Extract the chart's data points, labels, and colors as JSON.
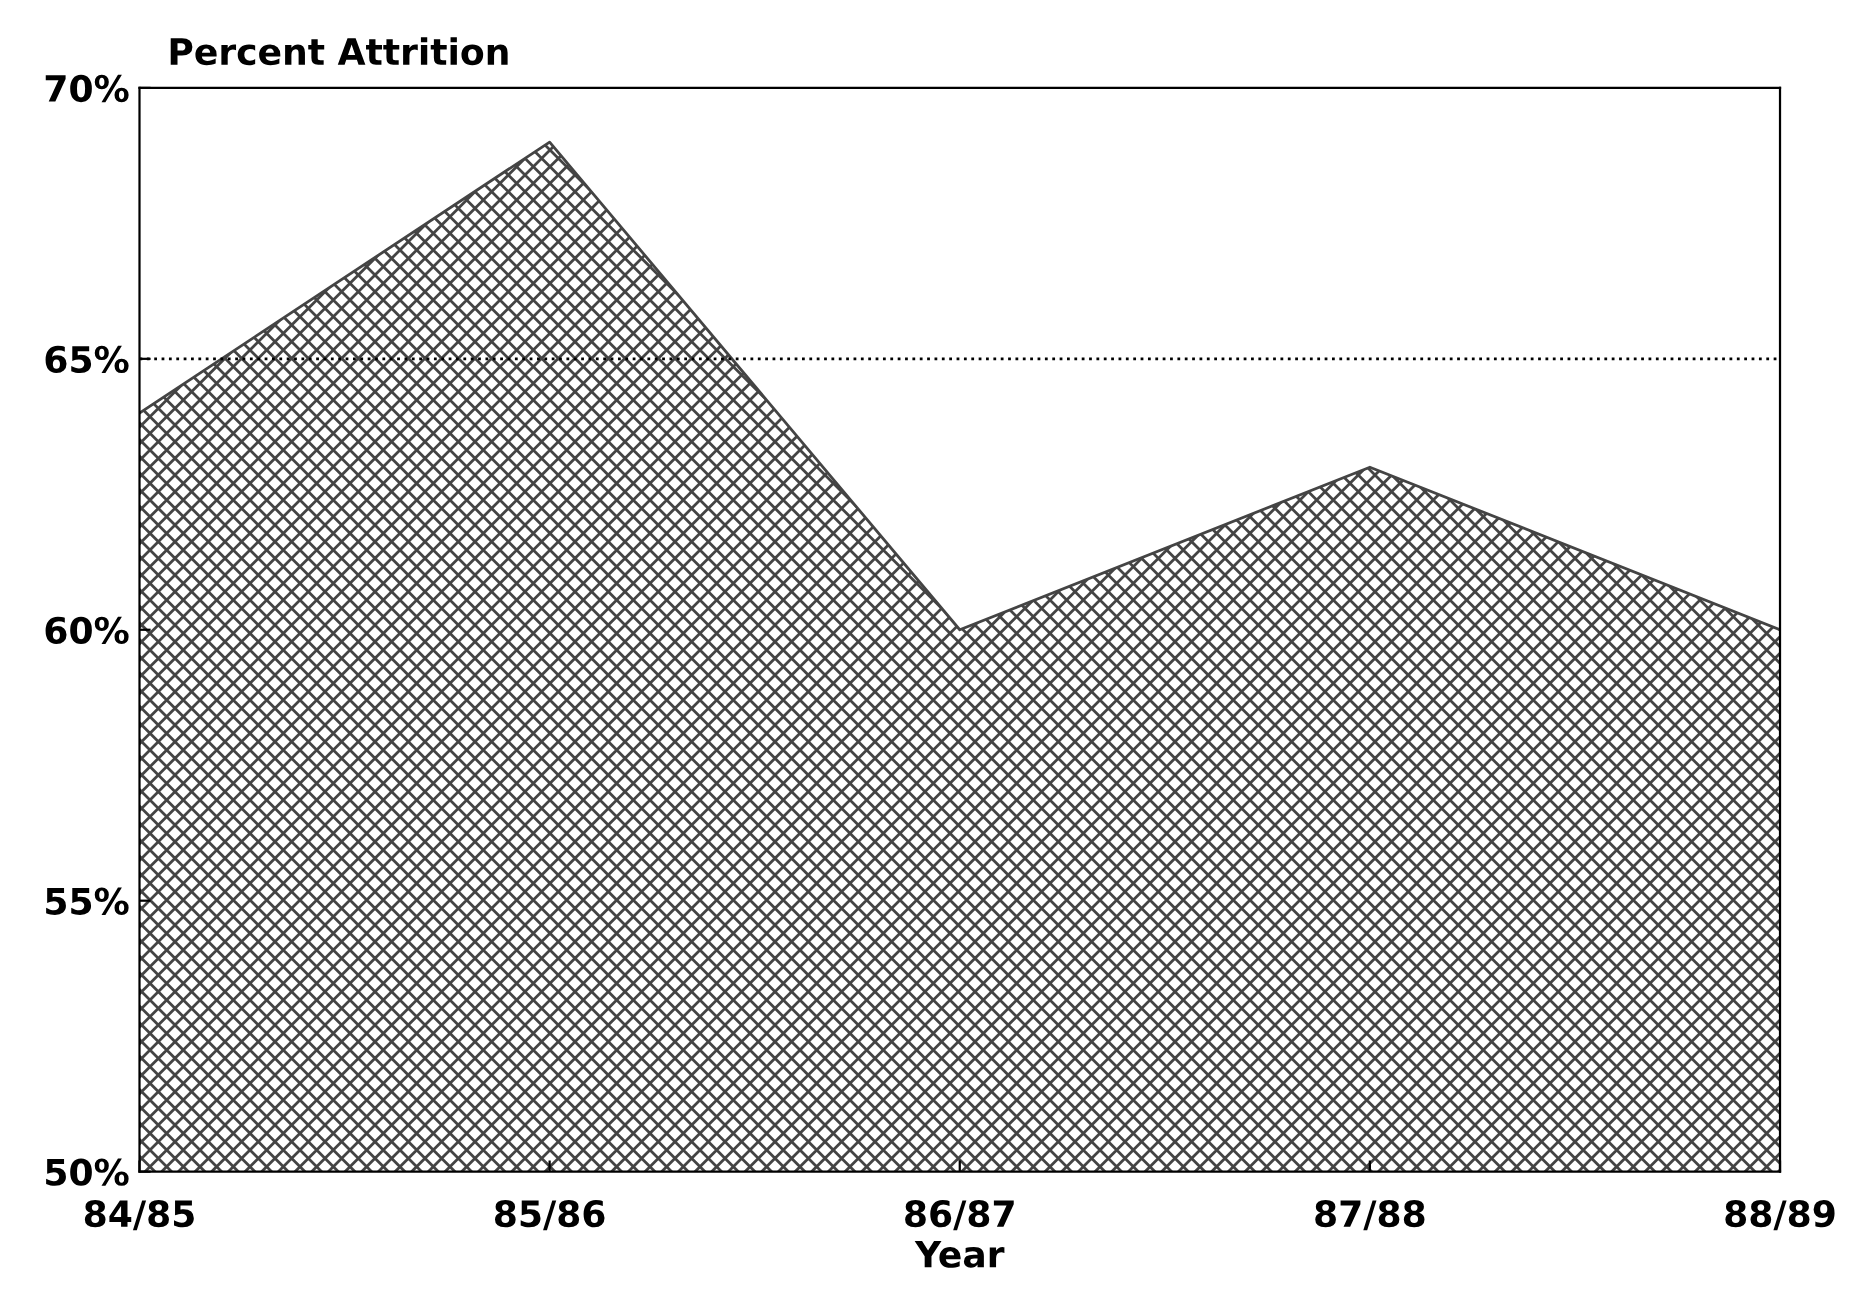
{
  "chart_data": {
    "type": "area",
    "xlabel": "Year",
    "ylabel": "Percent Attrition",
    "categories": [
      "84/85",
      "85/86",
      "86/87",
      "87/88",
      "88/89"
    ],
    "series": [
      {
        "color": "#444444",
        "values": [
          64,
          69,
          60,
          63,
          60
        ]
      }
    ],
    "ylim": [
      50,
      70
    ],
    "yticks": [
      {
        "value": 50,
        "label": "50%"
      },
      {
        "value": 55,
        "label": "55%"
      },
      {
        "value": 60,
        "label": "60%"
      },
      {
        "value": 65,
        "label": "65%"
      },
      {
        "value": 70,
        "label": "70%"
      }
    ],
    "ref_lines": [
      {
        "axis": "y",
        "value": 65,
        "line_style": "dotted",
        "color": "#000000"
      }
    ],
    "grid": false
  }
}
